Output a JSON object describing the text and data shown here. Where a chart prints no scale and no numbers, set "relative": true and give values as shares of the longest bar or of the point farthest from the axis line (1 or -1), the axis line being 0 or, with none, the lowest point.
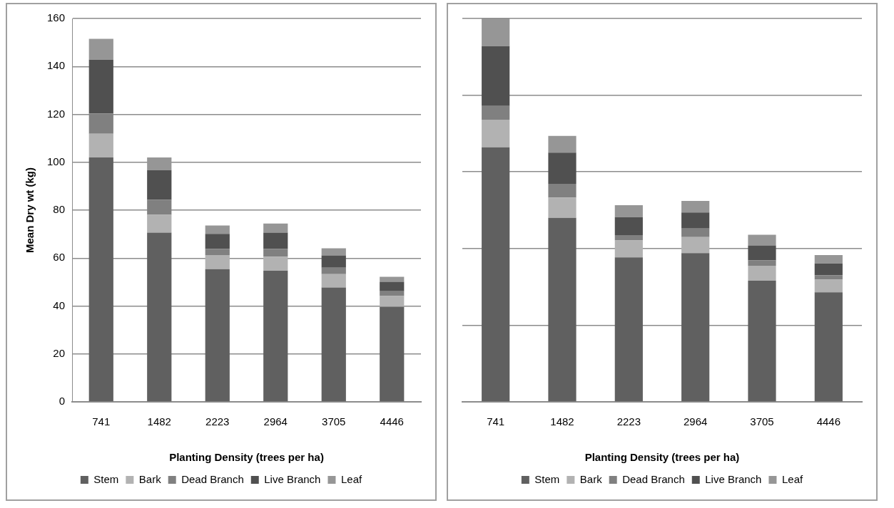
{
  "chart_data": [
    {
      "type": "bar",
      "stacked": true,
      "xlabel": "Planting Density (trees per ha)",
      "ylabel": "Mean Dry wt (kg)",
      "categories": [
        "741",
        "1482",
        "2223",
        "2964",
        "3705",
        "4446"
      ],
      "series": [
        {
          "name": "Stem",
          "color": "#606060",
          "values": [
            102.0,
            70.6,
            55.4,
            54.7,
            47.7,
            39.7
          ]
        },
        {
          "name": "Bark",
          "color": "#b2b2b2",
          "values": [
            9.9,
            7.5,
            5.9,
            5.9,
            5.6,
            4.5
          ]
        },
        {
          "name": "Dead Branch",
          "color": "#808080",
          "values": [
            8.5,
            6.2,
            2.5,
            3.2,
            2.7,
            2.0
          ]
        },
        {
          "name": "Live Branch",
          "color": "#505050",
          "values": [
            22.4,
            12.4,
            6.3,
            6.8,
            5.1,
            3.9
          ]
        },
        {
          "name": "Leaf",
          "color": "#969696",
          "values": [
            8.7,
            5.3,
            3.5,
            3.8,
            3.0,
            2.1
          ]
        }
      ],
      "ylim": [
        0,
        160
      ],
      "yticks": [
        0,
        20,
        40,
        60,
        80,
        100,
        120,
        140,
        160
      ],
      "grid": "y",
      "legend": "bottom"
    },
    {
      "type": "bar",
      "stacked": true,
      "relative": true,
      "xlabel": "Planting Density (trees per ha)",
      "categories": [
        "741",
        "1482",
        "2223",
        "2964",
        "3705",
        "4446"
      ],
      "series": [
        {
          "name": "Stem",
          "color": "#606060",
          "values": [
            0.664,
            0.48,
            0.377,
            0.388,
            0.316,
            0.286
          ]
        },
        {
          "name": "Bark",
          "color": "#b2b2b2",
          "values": [
            0.072,
            0.053,
            0.044,
            0.042,
            0.039,
            0.033
          ]
        },
        {
          "name": "Dead Branch",
          "color": "#808080",
          "values": [
            0.036,
            0.036,
            0.014,
            0.022,
            0.014,
            0.011
          ]
        },
        {
          "name": "Live Branch",
          "color": "#505050",
          "values": [
            0.156,
            0.081,
            0.047,
            0.042,
            0.039,
            0.031
          ]
        },
        {
          "name": "Leaf",
          "color": "#969696",
          "values": [
            0.072,
            0.044,
            0.031,
            0.03,
            0.028,
            0.022
          ]
        }
      ],
      "legend": "bottom"
    }
  ]
}
